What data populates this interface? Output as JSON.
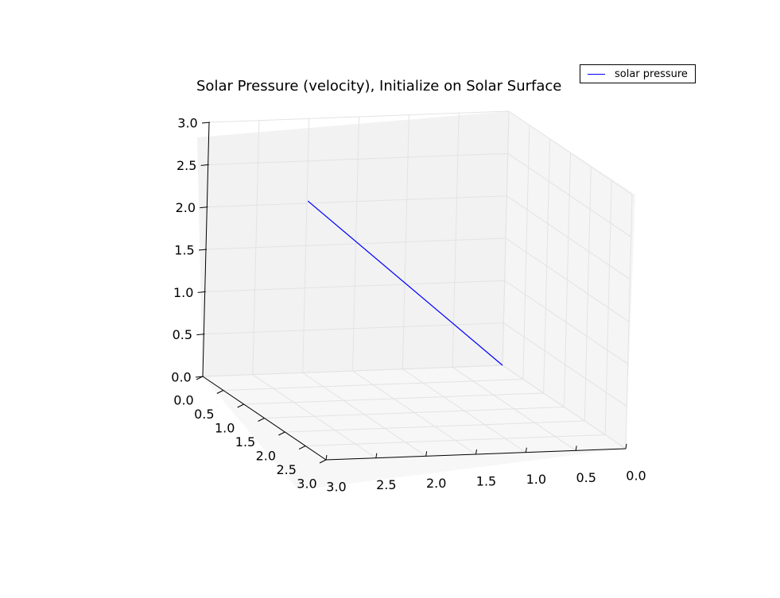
{
  "chart_data": {
    "type": "line",
    "projection": "3d",
    "title": "Solar Pressure (velocity), Initialize on Solar Surface",
    "xlabel": "",
    "ylabel": "",
    "zlabel": "",
    "xlim": [
      0.0,
      3.0
    ],
    "ylim": [
      0.0,
      3.0
    ],
    "zlim": [
      0.0,
      3.0
    ],
    "x_ticks": [
      "0.0",
      "0.5",
      "1.0",
      "1.5",
      "2.0",
      "2.5",
      "3.0"
    ],
    "y_ticks": [
      "0.0",
      "0.5",
      "1.0",
      "1.5",
      "2.0",
      "2.5",
      "3.0"
    ],
    "z_ticks": [
      "0.0",
      "0.5",
      "1.0",
      "1.5",
      "2.0",
      "2.5",
      "3.0"
    ],
    "grid": true,
    "legend_position": "top-right",
    "series": [
      {
        "name": "solar pressure",
        "color": "#0000ff",
        "x": [
          0.0,
          2.2
        ],
        "y": [
          0.0,
          0.5
        ],
        "z": [
          0.0,
          2.2
        ]
      }
    ]
  }
}
